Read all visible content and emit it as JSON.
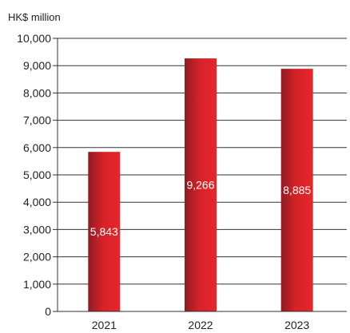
{
  "chart_data": {
    "type": "bar",
    "ylabel": "HK$ million",
    "categories": [
      "2021",
      "2022",
      "2023"
    ],
    "values": [
      5843,
      9266,
      8885
    ],
    "data_labels": [
      "5,843",
      "9,266",
      "8,885"
    ],
    "ylim": [
      0,
      10000
    ],
    "yticks": [
      0,
      1000,
      2000,
      3000,
      4000,
      5000,
      6000,
      7000,
      8000,
      9000,
      10000
    ],
    "ytick_labels": [
      "0",
      "1,000",
      "2,000",
      "3,000",
      "4,000",
      "5,000",
      "6,000",
      "7,000",
      "8,000",
      "9,000",
      "10,000"
    ],
    "grid": true,
    "bar_color_dark": "#8e1c22",
    "bar_color_light": "#e8262a"
  }
}
